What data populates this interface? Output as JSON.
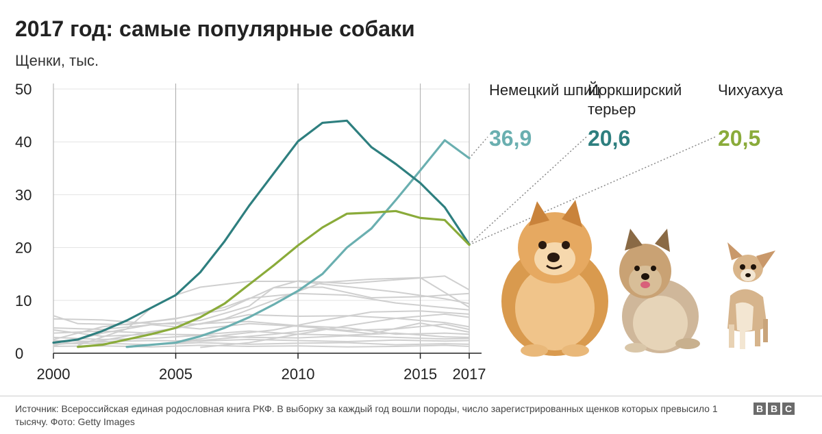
{
  "header": {
    "title": "2017 год: самые популярные собаки",
    "subtitle": "Щенки, тыс."
  },
  "chart_data": {
    "type": "line",
    "title": "2017 год: самые популярные собаки",
    "ylabel": "Щенки, тыс.",
    "xlabel": "",
    "xlim": [
      2000,
      2017
    ],
    "ylim": [
      0,
      50
    ],
    "x_ticks": [
      2000,
      2005,
      2010,
      2015,
      2017
    ],
    "y_ticks": [
      0,
      10,
      20,
      30,
      40,
      50
    ],
    "grid": "horizontal and vertical at tick values",
    "series": [
      {
        "name": "Немецкий шпиц",
        "color": "#6aafb0",
        "x": [
          2003,
          2005,
          2006,
          2007,
          2008,
          2009,
          2010,
          2011,
          2012,
          2013,
          2014,
          2015,
          2016,
          2017
        ],
        "values": [
          1.2,
          2.0,
          3.2,
          4.8,
          6.8,
          9.2,
          11.8,
          15.0,
          20.0,
          23.6,
          29.0,
          34.6,
          40.3,
          36.9
        ]
      },
      {
        "name": "Йоркширский терьер",
        "color": "#2e7f7f",
        "x": [
          2000,
          2001,
          2002,
          2003,
          2004,
          2005,
          2006,
          2007,
          2008,
          2009,
          2010,
          2011,
          2012,
          2013,
          2014,
          2015,
          2016,
          2017
        ],
        "values": [
          2.0,
          2.6,
          4.2,
          6.2,
          8.6,
          11.0,
          15.3,
          21.2,
          27.9,
          34.0,
          40.1,
          43.6,
          44.0,
          39.0,
          35.8,
          32.2,
          27.6,
          20.6
        ]
      },
      {
        "name": "Чихуахуа",
        "color": "#8aab3a",
        "x": [
          2001,
          2002,
          2003,
          2004,
          2005,
          2006,
          2007,
          2008,
          2009,
          2010,
          2011,
          2012,
          2013,
          2014,
          2015,
          2016,
          2017
        ],
        "values": [
          1.2,
          1.6,
          2.6,
          3.6,
          4.8,
          6.8,
          9.4,
          13.0,
          16.6,
          20.4,
          23.8,
          26.4,
          26.6,
          26.9,
          25.6,
          25.2,
          20.5
        ]
      }
    ],
    "background_series_color": "#cfcfcf",
    "background_series": [
      {
        "x": [
          2000,
          2002,
          2004,
          2005,
          2007,
          2009,
          2011,
          2013,
          2015,
          2017
        ],
        "values": [
          1.6,
          2.4,
          4.1,
          4.7,
          6.5,
          10.0,
          13.4,
          14.0,
          14.3,
          8.7
        ]
      },
      {
        "x": [
          2000,
          2002,
          2004,
          2005,
          2007,
          2009,
          2010,
          2012,
          2014,
          2016,
          2017
        ],
        "values": [
          2.6,
          5.0,
          6.0,
          6.6,
          8.2,
          12.4,
          13.7,
          13.2,
          13.9,
          14.6,
          12.0
        ]
      },
      {
        "x": [
          2001,
          2003,
          2004,
          2005,
          2006,
          2008,
          2010,
          2012,
          2014,
          2016,
          2017
        ],
        "values": [
          1.5,
          4.6,
          8.6,
          11.0,
          12.5,
          13.6,
          13.6,
          12.6,
          11.6,
          10.3,
          9.4
        ]
      },
      {
        "x": [
          2000,
          2002,
          2004,
          2006,
          2008,
          2009,
          2011,
          2013,
          2015,
          2017
        ],
        "values": [
          1.4,
          3.8,
          5.4,
          6.2,
          8.9,
          12.4,
          12.5,
          10.5,
          10.7,
          11.3
        ]
      },
      {
        "x": [
          2000,
          2001,
          2003,
          2005,
          2007,
          2008,
          2010,
          2012,
          2014,
          2017
        ],
        "values": [
          7.1,
          5.6,
          5.4,
          6.5,
          8.7,
          10.4,
          11.3,
          11.0,
          9.5,
          8.2
        ]
      },
      {
        "x": [
          2000,
          2002,
          2004,
          2006,
          2008,
          2010,
          2012,
          2014,
          2016,
          2017
        ],
        "values": [
          6.5,
          6.3,
          5.6,
          5.5,
          7.3,
          7.0,
          7.1,
          6.6,
          5.8,
          5.0
        ]
      },
      {
        "x": [
          2000,
          2002,
          2004,
          2006,
          2008,
          2010,
          2012,
          2014,
          2016,
          2017
        ],
        "values": [
          4.8,
          4.5,
          5.4,
          4.6,
          5.6,
          5.1,
          4.3,
          4.6,
          5.5,
          4.5
        ]
      },
      {
        "x": [
          2000,
          2002,
          2004,
          2006,
          2008,
          2010,
          2012,
          2014,
          2016,
          2017
        ],
        "values": [
          3.8,
          4.2,
          3.8,
          5.6,
          6.0,
          5.2,
          4.8,
          3.6,
          3.8,
          3.6
        ]
      },
      {
        "x": [
          2000,
          2002,
          2004,
          2006,
          2008,
          2010,
          2012,
          2014,
          2016,
          2017
        ],
        "values": [
          4.4,
          3.2,
          3.6,
          3.5,
          4.2,
          3.6,
          3.4,
          3.8,
          3.1,
          3.0
        ]
      },
      {
        "x": [
          2000,
          2002,
          2004,
          2006,
          2008,
          2010,
          2012,
          2014,
          2016,
          2017
        ],
        "values": [
          3.0,
          2.6,
          2.8,
          3.4,
          3.0,
          2.9,
          3.3,
          3.0,
          2.7,
          2.8
        ]
      },
      {
        "x": [
          2000,
          2002,
          2004,
          2006,
          2008,
          2010,
          2012,
          2014,
          2016,
          2017
        ],
        "values": [
          2.4,
          2.2,
          2.4,
          2.3,
          2.6,
          2.4,
          2.2,
          2.5,
          2.3,
          2.4
        ]
      },
      {
        "x": [
          2000,
          2002,
          2004,
          2006,
          2008,
          2010,
          2012,
          2014,
          2016,
          2017
        ],
        "values": [
          1.8,
          1.9,
          1.6,
          2.0,
          1.7,
          1.9,
          2.0,
          1.6,
          1.8,
          1.7
        ]
      },
      {
        "x": [
          2000,
          2002,
          2004,
          2006,
          2008,
          2010,
          2012,
          2014,
          2016,
          2017
        ],
        "values": [
          1.3,
          1.4,
          1.2,
          1.5,
          1.3,
          1.4,
          1.2,
          1.3,
          1.5,
          1.3
        ]
      },
      {
        "x": [
          2003,
          2005,
          2007,
          2009,
          2011,
          2013,
          2015,
          2017
        ],
        "values": [
          1.1,
          2.0,
          2.8,
          3.6,
          4.6,
          3.7,
          5.7,
          4.0
        ]
      },
      {
        "x": [
          2006,
          2008,
          2010,
          2012,
          2014,
          2016,
          2017
        ],
        "values": [
          1.1,
          2.0,
          3.6,
          5.2,
          6.6,
          7.4,
          6.8
        ]
      },
      {
        "x": [
          2005,
          2007,
          2009,
          2011,
          2013,
          2015,
          2017
        ],
        "values": [
          2.0,
          3.4,
          4.4,
          6.2,
          7.8,
          8.0,
          7.4
        ]
      }
    ]
  },
  "legend": [
    {
      "name": "Немецкий шпиц",
      "value": "36,9",
      "color": "#6aafb0"
    },
    {
      "name": "Йоркширский терьер",
      "value": "20,6",
      "color": "#2e7f7f"
    },
    {
      "name": "Чихуахуа",
      "value": "20,5",
      "color": "#8aab3a"
    }
  ],
  "footer": {
    "source": "Источник: Всероссийская единая родословная книга РКФ. В выборку за каждый год вошли породы, число зарегистрированных щенков которых превысило 1 тысячу. Фото: Getty Images",
    "logo": [
      "B",
      "B",
      "C"
    ]
  },
  "photos": [
    {
      "breed": "Немецкий шпиц",
      "icon": "pomeranian-dog-photo"
    },
    {
      "breed": "Йоркширский терьер",
      "icon": "yorkshire-terrier-photo"
    },
    {
      "breed": "Чихуахуа",
      "icon": "chihuahua-photo"
    }
  ]
}
